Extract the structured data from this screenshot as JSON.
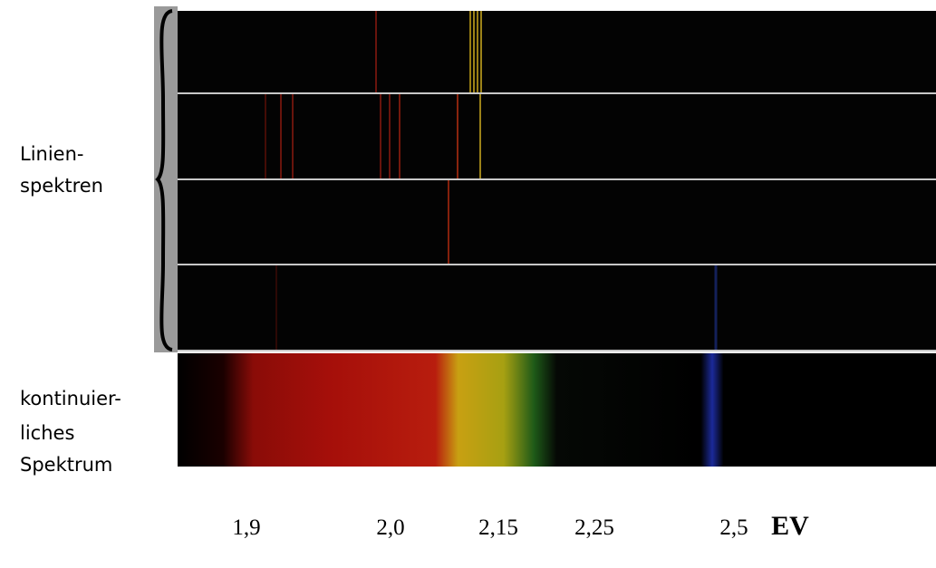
{
  "labels": {
    "line_spectra": [
      "Linien-",
      "spektren"
    ],
    "continuous": [
      "kontinuier-",
      "liches",
      "Spektrum"
    ]
  },
  "axis": {
    "ticks": [
      "1,9",
      "2,0",
      "2,15",
      "2,25",
      "2,5"
    ],
    "unit": "EV"
  }
}
